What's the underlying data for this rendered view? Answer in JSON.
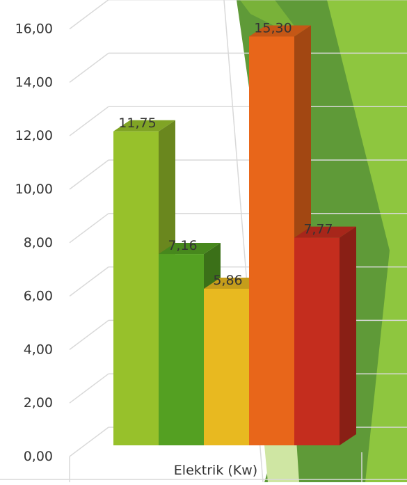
{
  "chart_data": {
    "type": "bar",
    "categories": [
      "Elektrik (Kw)"
    ],
    "series": [
      {
        "values": [
          11.75
        ],
        "color": "#97c12b",
        "label": "11,75"
      },
      {
        "values": [
          7.16
        ],
        "color": "#54a022",
        "label": "7,16"
      },
      {
        "values": [
          5.86
        ],
        "color": "#e8b920",
        "label": "5,86"
      },
      {
        "values": [
          15.3
        ],
        "color": "#e8661a",
        "label": "15,30"
      },
      {
        "values": [
          7.77
        ],
        "color": "#c42d1e",
        "label": "7,77"
      }
    ],
    "y_ticks": [
      "0,00",
      "2,00",
      "4,00",
      "6,00",
      "8,00",
      "10,00",
      "12,00",
      "14,00",
      "16,00"
    ],
    "ylim": [
      0,
      16
    ],
    "grid": true,
    "style": "3d-clustered-column",
    "background_colors": [
      "#ffffff",
      "#5f9a38",
      "#8ec63f"
    ]
  }
}
